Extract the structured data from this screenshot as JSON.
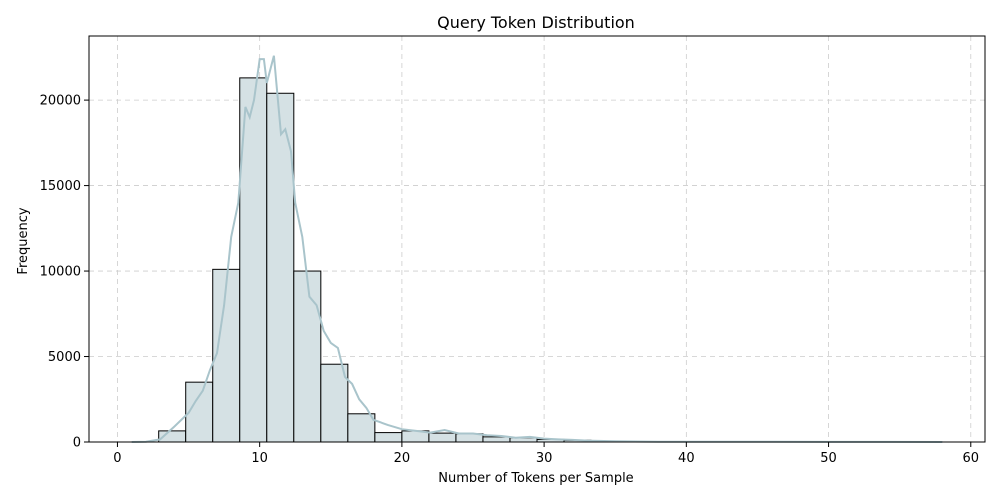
{
  "chart_data": {
    "type": "bar",
    "title": "Query Token Distribution",
    "xlabel": "Number of Tokens per Sample",
    "ylabel": "Frequency",
    "xlim": [
      -2,
      61
    ],
    "ylim": [
      0,
      23750
    ],
    "xticks": [
      0,
      10,
      20,
      30,
      40,
      50,
      60
    ],
    "yticks": [
      0,
      5000,
      10000,
      15000,
      20000
    ],
    "grid": true,
    "bar_color": "#d5e1e4",
    "edge_color": "#000000",
    "kde_color": "#a9c4cb",
    "bins": [
      {
        "x0": 2.9,
        "x1": 4.8,
        "value": 650
      },
      {
        "x0": 4.8,
        "x1": 6.7,
        "value": 3500
      },
      {
        "x0": 6.7,
        "x1": 8.6,
        "value": 10100
      },
      {
        "x0": 8.6,
        "x1": 10.5,
        "value": 21300
      },
      {
        "x0": 10.5,
        "x1": 12.4,
        "value": 20400
      },
      {
        "x0": 12.4,
        "x1": 14.3,
        "value": 10000
      },
      {
        "x0": 14.3,
        "x1": 16.2,
        "value": 4550
      },
      {
        "x0": 16.2,
        "x1": 18.1,
        "value": 1650
      },
      {
        "x0": 18.1,
        "x1": 20.0,
        "value": 550
      },
      {
        "x0": 20.0,
        "x1": 21.9,
        "value": 650
      },
      {
        "x0": 21.9,
        "x1": 23.8,
        "value": 520
      },
      {
        "x0": 23.8,
        "x1": 25.7,
        "value": 480
      },
      {
        "x0": 25.7,
        "x1": 27.6,
        "value": 300
      },
      {
        "x0": 27.6,
        "x1": 29.5,
        "value": 250
      },
      {
        "x0": 29.5,
        "x1": 31.4,
        "value": 150
      },
      {
        "x0": 31.4,
        "x1": 33.3,
        "value": 100
      },
      {
        "x0": 33.3,
        "x1": 35.2,
        "value": 50
      },
      {
        "x0": 35.2,
        "x1": 37.1,
        "value": 30
      },
      {
        "x0": 37.1,
        "x1": 39.0,
        "value": 20
      },
      {
        "x0": 39.0,
        "x1": 40.9,
        "value": 15
      },
      {
        "x0": 40.9,
        "x1": 42.8,
        "value": 10
      },
      {
        "x0": 42.8,
        "x1": 44.7,
        "value": 8
      },
      {
        "x0": 44.7,
        "x1": 46.6,
        "value": 5
      },
      {
        "x0": 46.6,
        "x1": 48.5,
        "value": 5
      },
      {
        "x0": 48.5,
        "x1": 50.4,
        "value": 3
      },
      {
        "x0": 50.4,
        "x1": 52.3,
        "value": 3
      },
      {
        "x0": 52.3,
        "x1": 54.2,
        "value": 2
      },
      {
        "x0": 54.2,
        "x1": 56.1,
        "value": 2
      },
      {
        "x0": 56.1,
        "x1": 58.0,
        "value": 1
      }
    ],
    "kde": [
      [
        1,
        0
      ],
      [
        2,
        20
      ],
      [
        3,
        150
      ],
      [
        4,
        900
      ],
      [
        5,
        1700
      ],
      [
        5.5,
        2400
      ],
      [
        6,
        3000
      ],
      [
        6.5,
        4200
      ],
      [
        7,
        5200
      ],
      [
        7.5,
        8000
      ],
      [
        8,
        12000
      ],
      [
        8.5,
        14000
      ],
      [
        9,
        19600
      ],
      [
        9.3,
        19000
      ],
      [
        9.6,
        20000
      ],
      [
        10,
        22400
      ],
      [
        10.3,
        22400
      ],
      [
        10.5,
        21000
      ],
      [
        11,
        22600
      ],
      [
        11.5,
        18000
      ],
      [
        11.8,
        18300
      ],
      [
        12.2,
        17000
      ],
      [
        12.5,
        14000
      ],
      [
        13,
        12000
      ],
      [
        13.5,
        8500
      ],
      [
        14,
        8000
      ],
      [
        14.5,
        6500
      ],
      [
        15,
        5800
      ],
      [
        15.5,
        5500
      ],
      [
        16,
        3800
      ],
      [
        16.5,
        3400
      ],
      [
        17,
        2500
      ],
      [
        17.5,
        2000
      ],
      [
        18,
        1300
      ],
      [
        19,
        1000
      ],
      [
        20,
        750
      ],
      [
        21,
        650
      ],
      [
        22,
        550
      ],
      [
        23,
        700
      ],
      [
        24,
        500
      ],
      [
        25,
        500
      ],
      [
        26,
        400
      ],
      [
        27,
        350
      ],
      [
        28,
        250
      ],
      [
        29,
        300
      ],
      [
        30,
        200
      ],
      [
        31,
        150
      ],
      [
        32,
        120
      ],
      [
        33,
        80
      ],
      [
        35,
        40
      ],
      [
        38,
        20
      ],
      [
        42,
        15
      ],
      [
        46,
        10
      ],
      [
        50,
        5
      ],
      [
        54,
        3
      ],
      [
        58,
        2
      ]
    ]
  }
}
